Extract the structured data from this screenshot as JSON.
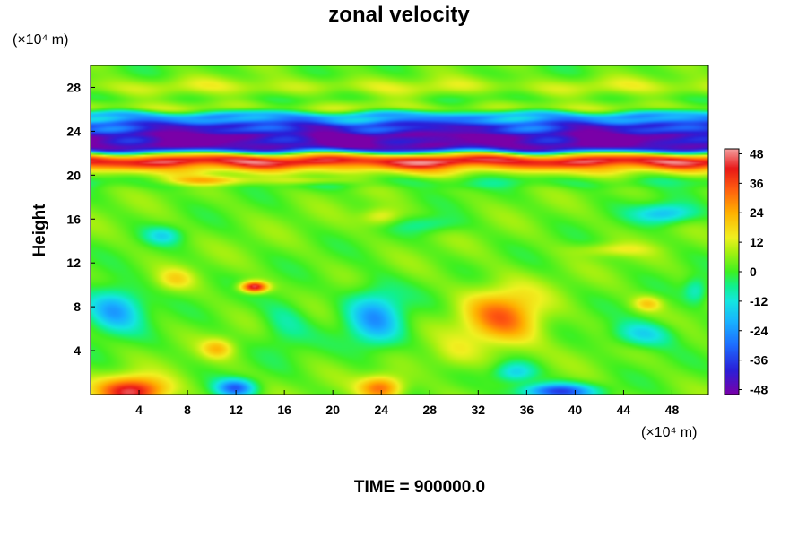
{
  "chart_data": {
    "type": "heatmap",
    "title": "zonal velocity",
    "ylabel": "Height",
    "xunit": "(×10⁴ m)",
    "yunit": "(×10⁴ m)",
    "x_ticks": [
      "4",
      "8",
      "12",
      "16",
      "20",
      "24",
      "28",
      "32",
      "36",
      "40",
      "44",
      "48"
    ],
    "x_tick_values": [
      4,
      8,
      12,
      16,
      20,
      24,
      28,
      32,
      36,
      40,
      44,
      48
    ],
    "y_ticks": [
      "4",
      "8",
      "12",
      "16",
      "20",
      "24",
      "28"
    ],
    "y_tick_values": [
      4,
      8,
      12,
      16,
      20,
      24,
      28
    ],
    "xlim": [
      0,
      51
    ],
    "ylim": [
      0,
      30
    ],
    "colorbar_ticks": [
      "48",
      "36",
      "24",
      "12",
      "0",
      "-12",
      "-24",
      "-36",
      "-48"
    ],
    "colorbar_tick_values": [
      48,
      36,
      24,
      12,
      0,
      -12,
      -24,
      -36,
      -48
    ],
    "colorbar_range": [
      -50,
      50
    ],
    "colormap_stops": [
      {
        "v": -50,
        "c": "#7a00a8"
      },
      {
        "v": -40,
        "c": "#2a1fd8"
      },
      {
        "v": -30,
        "c": "#1d6cff"
      },
      {
        "v": -20,
        "c": "#18b4ff"
      },
      {
        "v": -12,
        "c": "#14e6e0"
      },
      {
        "v": -6,
        "c": "#10f090"
      },
      {
        "v": 0,
        "c": "#3ef020"
      },
      {
        "v": 8,
        "c": "#a6f010"
      },
      {
        "v": 14,
        "c": "#f0f020"
      },
      {
        "v": 24,
        "c": "#ffb000"
      },
      {
        "v": 34,
        "c": "#ff5a10"
      },
      {
        "v": 42,
        "c": "#e81818"
      },
      {
        "v": 50,
        "c": "#f4a0a0"
      }
    ],
    "field": {
      "background": 3,
      "horizontal_bands": [
        {
          "y": 29.5,
          "width": 0.9,
          "value": 2
        },
        {
          "y": 28.0,
          "width": 0.8,
          "value": 11
        },
        {
          "y": 27.0,
          "width": 0.7,
          "value": -1
        },
        {
          "y": 26.2,
          "width": 0.6,
          "value": 9
        },
        {
          "y": 25.4,
          "width": 0.4,
          "value": -22
        },
        {
          "y": 24.6,
          "width": 0.45,
          "value": -33
        },
        {
          "y": 23.7,
          "width": 0.6,
          "value": -42
        },
        {
          "y": 22.6,
          "width": 0.75,
          "value": -48
        },
        {
          "y": 21.9,
          "width": 0.35,
          "value": 18
        },
        {
          "y": 21.3,
          "width": 0.55,
          "value": 47
        },
        {
          "y": 20.5,
          "width": 0.5,
          "value": 14
        },
        {
          "y": 19.3,
          "width": 0.5,
          "value": -2
        }
      ],
      "blobs": [
        {
          "x": 3.5,
          "y": 0.3,
          "sx": 2.8,
          "sy": 1.3,
          "a": 42
        },
        {
          "x": 2.0,
          "y": 7.8,
          "sx": 2.4,
          "sy": 2.0,
          "a": -26
        },
        {
          "x": 13.5,
          "y": 9.8,
          "sx": 1.1,
          "sy": 0.5,
          "a": 45
        },
        {
          "x": 12.0,
          "y": 0.6,
          "sx": 1.6,
          "sy": 0.8,
          "a": -32
        },
        {
          "x": 10.5,
          "y": 4.2,
          "sx": 1.3,
          "sy": 0.9,
          "a": 16
        },
        {
          "x": 10.0,
          "y": 19.5,
          "sx": 4.0,
          "sy": 0.45,
          "a": 22
        },
        {
          "x": 18.0,
          "y": 19.5,
          "sx": 3.5,
          "sy": 0.35,
          "a": 12
        },
        {
          "x": 23.5,
          "y": 7.0,
          "sx": 2.3,
          "sy": 2.8,
          "a": -24
        },
        {
          "x": 24.0,
          "y": 0.6,
          "sx": 1.8,
          "sy": 1.1,
          "a": 30
        },
        {
          "x": 34.0,
          "y": 7.0,
          "sx": 3.2,
          "sy": 2.7,
          "a": 28
        },
        {
          "x": 35.0,
          "y": 2.0,
          "sx": 1.8,
          "sy": 1.0,
          "a": -20
        },
        {
          "x": 38.5,
          "y": 0.3,
          "sx": 3.0,
          "sy": 0.7,
          "a": -38
        },
        {
          "x": 45.5,
          "y": 5.5,
          "sx": 2.6,
          "sy": 1.2,
          "a": -18
        },
        {
          "x": 46.0,
          "y": 8.3,
          "sx": 1.2,
          "sy": 0.7,
          "a": 16
        },
        {
          "x": 47.5,
          "y": 16.5,
          "sx": 2.5,
          "sy": 0.9,
          "a": -22
        },
        {
          "x": 24.0,
          "y": 16.2,
          "sx": 1.6,
          "sy": 0.8,
          "a": 14
        },
        {
          "x": 28.0,
          "y": 15.5,
          "sx": 2.5,
          "sy": 0.8,
          "a": -10
        },
        {
          "x": 16.0,
          "y": 6.5,
          "sx": 2.0,
          "sy": 2.5,
          "a": -10
        },
        {
          "x": 6.0,
          "y": 14.5,
          "sx": 1.5,
          "sy": 0.8,
          "a": -14
        },
        {
          "x": 43.0,
          "y": 13.2,
          "sx": 3.0,
          "sy": 0.6,
          "a": 10
        },
        {
          "x": 50.0,
          "y": 9.5,
          "sx": 1.0,
          "sy": 1.2,
          "a": -14
        },
        {
          "x": 30.0,
          "y": 3.5,
          "sx": 2.0,
          "sy": 1.5,
          "a": 8
        },
        {
          "x": 7.0,
          "y": 10.5,
          "sx": 1.5,
          "sy": 1.0,
          "a": 12
        }
      ]
    }
  },
  "time_label": "TIME = 900000.0"
}
